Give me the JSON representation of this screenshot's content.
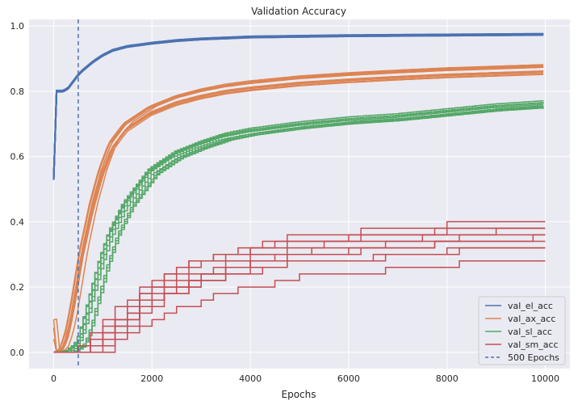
{
  "chart_data": {
    "type": "line",
    "title": "Validation Accuracy",
    "xlabel": "Epochs",
    "ylabel": "",
    "xlim": [
      -500,
      10500
    ],
    "ylim": [
      -0.05,
      1.02
    ],
    "x_ticks": [
      0,
      2000,
      4000,
      6000,
      8000,
      10000
    ],
    "x_tick_labels": [
      "0",
      "2000",
      "4000",
      "6000",
      "8000",
      "10000"
    ],
    "y_ticks": [
      0.0,
      0.2,
      0.4,
      0.6,
      0.8,
      1.0
    ],
    "y_tick_labels": [
      "0.0",
      "0.2",
      "0.4",
      "0.6",
      "0.8",
      "1.0"
    ],
    "grid": true,
    "background": "#eaeaf2",
    "legend_position": "bottom-right",
    "vline": {
      "x": 500,
      "label": "500 Epochs",
      "color": "#4c72b0",
      "style": "dashed"
    },
    "series": [
      {
        "name": "val_el_acc",
        "color": "#4c72b0",
        "runs": 10,
        "x": [
          0,
          10,
          30,
          200,
          300,
          400,
          500,
          600,
          800,
          1000,
          1200,
          1500,
          2000,
          2500,
          3000,
          4000,
          5000,
          6000,
          7000,
          8000,
          9000,
          10000
        ],
        "y": [
          0.53,
          0.7,
          0.8,
          0.8,
          0.81,
          0.83,
          0.85,
          0.865,
          0.89,
          0.91,
          0.925,
          0.937,
          0.947,
          0.955,
          0.96,
          0.966,
          0.968,
          0.97,
          0.971,
          0.972,
          0.973,
          0.974
        ]
      },
      {
        "name": "val_ax_acc",
        "color": "#dd8452",
        "runs": 10,
        "x": [
          0,
          30,
          100,
          200,
          300,
          400,
          500,
          600,
          800,
          1000,
          1200,
          1500,
          2000,
          2500,
          3000,
          3500,
          4000,
          5000,
          6000,
          7000,
          8000,
          9000,
          10000
        ],
        "y": [
          0.1,
          0.0,
          0.0,
          0.01,
          0.05,
          0.12,
          0.21,
          0.3,
          0.44,
          0.55,
          0.63,
          0.69,
          0.74,
          0.77,
          0.79,
          0.805,
          0.815,
          0.83,
          0.84,
          0.848,
          0.855,
          0.86,
          0.865
        ]
      },
      {
        "name": "val_sl_acc",
        "color": "#55a868",
        "runs": 10,
        "x": [
          0,
          100,
          300,
          400,
          500,
          600,
          700,
          800,
          1000,
          1200,
          1500,
          2000,
          2500,
          3000,
          3500,
          4000,
          5000,
          6000,
          7000,
          8000,
          9000,
          10000
        ],
        "y": [
          0.0,
          0.0,
          0.0,
          0.01,
          0.02,
          0.05,
          0.1,
          0.16,
          0.27,
          0.36,
          0.45,
          0.55,
          0.6,
          0.63,
          0.655,
          0.67,
          0.69,
          0.705,
          0.715,
          0.73,
          0.745,
          0.755
        ]
      },
      {
        "name": "val_sm_acc",
        "color": "#c44e52",
        "runs": 10,
        "x": [
          0,
          500,
          800,
          1000,
          1200,
          1500,
          2000,
          2500,
          3000,
          3500,
          4000,
          5000,
          6000,
          7000,
          8000,
          9000,
          10000
        ],
        "y": [
          0.0,
          0.0,
          0.02,
          0.04,
          0.07,
          0.11,
          0.17,
          0.21,
          0.24,
          0.26,
          0.28,
          0.31,
          0.32,
          0.33,
          0.345,
          0.355,
          0.36
        ]
      }
    ]
  }
}
